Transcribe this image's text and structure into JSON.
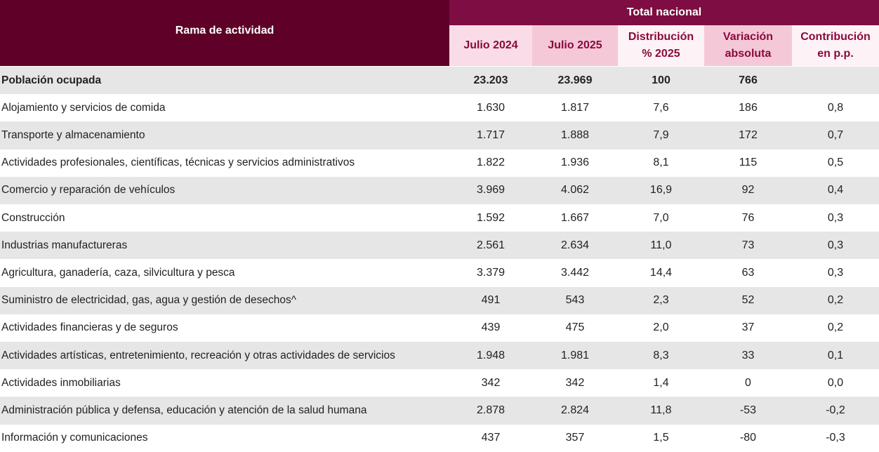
{
  "table": {
    "header": {
      "row_label": "Rama de actividad",
      "group": "Total nacional",
      "columns": [
        [
          "Julio 2024"
        ],
        [
          "Julio 2025"
        ],
        [
          "Distribución",
          "% 2025"
        ],
        [
          "Variación",
          "absoluta"
        ],
        [
          "Contribución",
          "en p.p."
        ]
      ]
    },
    "total": [
      "Población ocupada",
      "23.203",
      "23.969",
      "100",
      "766"
    ],
    "rows": [
      [
        "Alojamiento y servicios de comida",
        "1.630",
        "1.817",
        "7,6",
        "186",
        "0,8"
      ],
      [
        "Transporte y almacenamiento",
        "1.717",
        "1.888",
        "7,9",
        "172",
        "0,7"
      ],
      [
        "Actividades profesionales, científicas, técnicas y servicios administrativos",
        "1.822",
        "1.936",
        "8,1",
        "115",
        "0,5"
      ],
      [
        "Comercio y reparación de vehículos",
        "3.969",
        "4.062",
        "16,9",
        "92",
        "0,4"
      ],
      [
        "Construcción",
        "1.592",
        "1.667",
        "7,0",
        "76",
        "0,3"
      ],
      [
        "Industrias manufactureras",
        "2.561",
        "2.634",
        "11,0",
        "73",
        "0,3"
      ],
      [
        "Agricultura, ganadería, caza, silvicultura y pesca",
        "3.379",
        "3.442",
        "14,4",
        "63",
        "0,3"
      ],
      [
        "Suministro de electricidad, gas, agua y gestión de desechos^",
        "491",
        "543",
        "2,3",
        "52",
        "0,2"
      ],
      [
        "Actividades financieras y de seguros",
        "439",
        "475",
        "2,0",
        "37",
        "0,2"
      ],
      [
        "Actividades artísticas, entretenimiento, recreación y otras actividades de servicios",
        "1.948",
        "1.981",
        "8,3",
        "33",
        "0,1"
      ],
      [
        "Actividades inmobiliarias",
        "342",
        "342",
        "1,4",
        "0",
        "0,0"
      ],
      [
        "Administración pública y defensa, educación y atención de la salud humana",
        "2.878",
        "2.824",
        "11,8",
        "-53",
        "-0,2"
      ],
      [
        "Información y comunicaciones",
        "437",
        "357",
        "1,5",
        "-80",
        "-0,3"
      ]
    ]
  }
}
